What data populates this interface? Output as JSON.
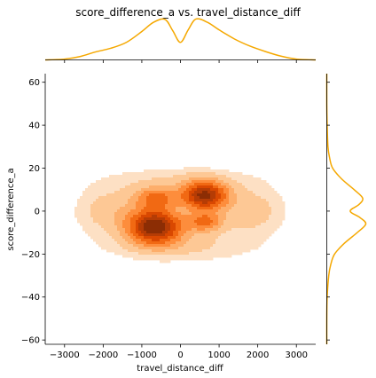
{
  "chart_data": {
    "type": "kde_joint",
    "title": "score_difference_a vs. travel_distance_diff",
    "xlabel": "travel_distance_diff",
    "ylabel": "score_difference_a",
    "xlim": [
      -3500,
      3500
    ],
    "ylim": [
      -62,
      64
    ],
    "xticks": [
      -3000,
      -2000,
      -1000,
      0,
      1000,
      2000,
      3000
    ],
    "yticks": [
      -60,
      -40,
      -20,
      0,
      20,
      40,
      60
    ],
    "grid": false,
    "colors": {
      "marginal_line": "#f5a800",
      "levels": [
        "#fde0c4",
        "#fdc895",
        "#fdae6b",
        "#fd8d3c",
        "#f16913",
        "#d94801",
        "#b53c05",
        "#8c2d04"
      ]
    },
    "joint_kde_clusters": [
      {
        "x": -650,
        "y": -7,
        "sx": 470,
        "sy": 5.5,
        "w": 1.0
      },
      {
        "x": 620,
        "y": 7,
        "sx": 400,
        "sy": 4.5,
        "w": 0.9
      },
      {
        "x": -620,
        "y": 6,
        "sx": 380,
        "sy": 3.5,
        "w": 0.45
      },
      {
        "x": 620,
        "y": -5,
        "sx": 320,
        "sy": 3.2,
        "w": 0.45
      },
      {
        "x": -1800,
        "y": 0,
        "sx": 600,
        "sy": 7.5,
        "w": 0.18
      },
      {
        "x": 1800,
        "y": 0,
        "sx": 600,
        "sy": 7.5,
        "w": 0.18
      },
      {
        "x": 0,
        "y": -16,
        "sx": 1300,
        "sy": 5,
        "w": 0.14
      },
      {
        "x": 0,
        "y": 14,
        "sx": 1300,
        "sy": 4.5,
        "w": 0.12
      }
    ],
    "marginal_x_density": {
      "x": [
        -3500,
        -3000,
        -2600,
        -2200,
        -1800,
        -1400,
        -1000,
        -700,
        -400,
        -200,
        0,
        200,
        400,
        700,
        1000,
        1400,
        1800,
        2200,
        2600,
        3000,
        3500
      ],
      "density": [
        0.0,
        0.02,
        0.08,
        0.19,
        0.28,
        0.42,
        0.68,
        0.9,
        0.97,
        0.7,
        0.42,
        0.72,
        0.98,
        0.9,
        0.72,
        0.5,
        0.33,
        0.2,
        0.09,
        0.02,
        0.0
      ]
    },
    "marginal_y_density": {
      "y": [
        -62,
        -50,
        -40,
        -30,
        -25,
        -20,
        -15,
        -10,
        -6,
        -3,
        0,
        3,
        6,
        10,
        15,
        20,
        25,
        30,
        40,
        50,
        64
      ],
      "density": [
        0.0,
        0.0,
        0.01,
        0.05,
        0.1,
        0.2,
        0.45,
        0.78,
        1.0,
        0.85,
        0.6,
        0.82,
        0.92,
        0.7,
        0.38,
        0.15,
        0.07,
        0.03,
        0.01,
        0.0,
        0.0
      ]
    }
  }
}
